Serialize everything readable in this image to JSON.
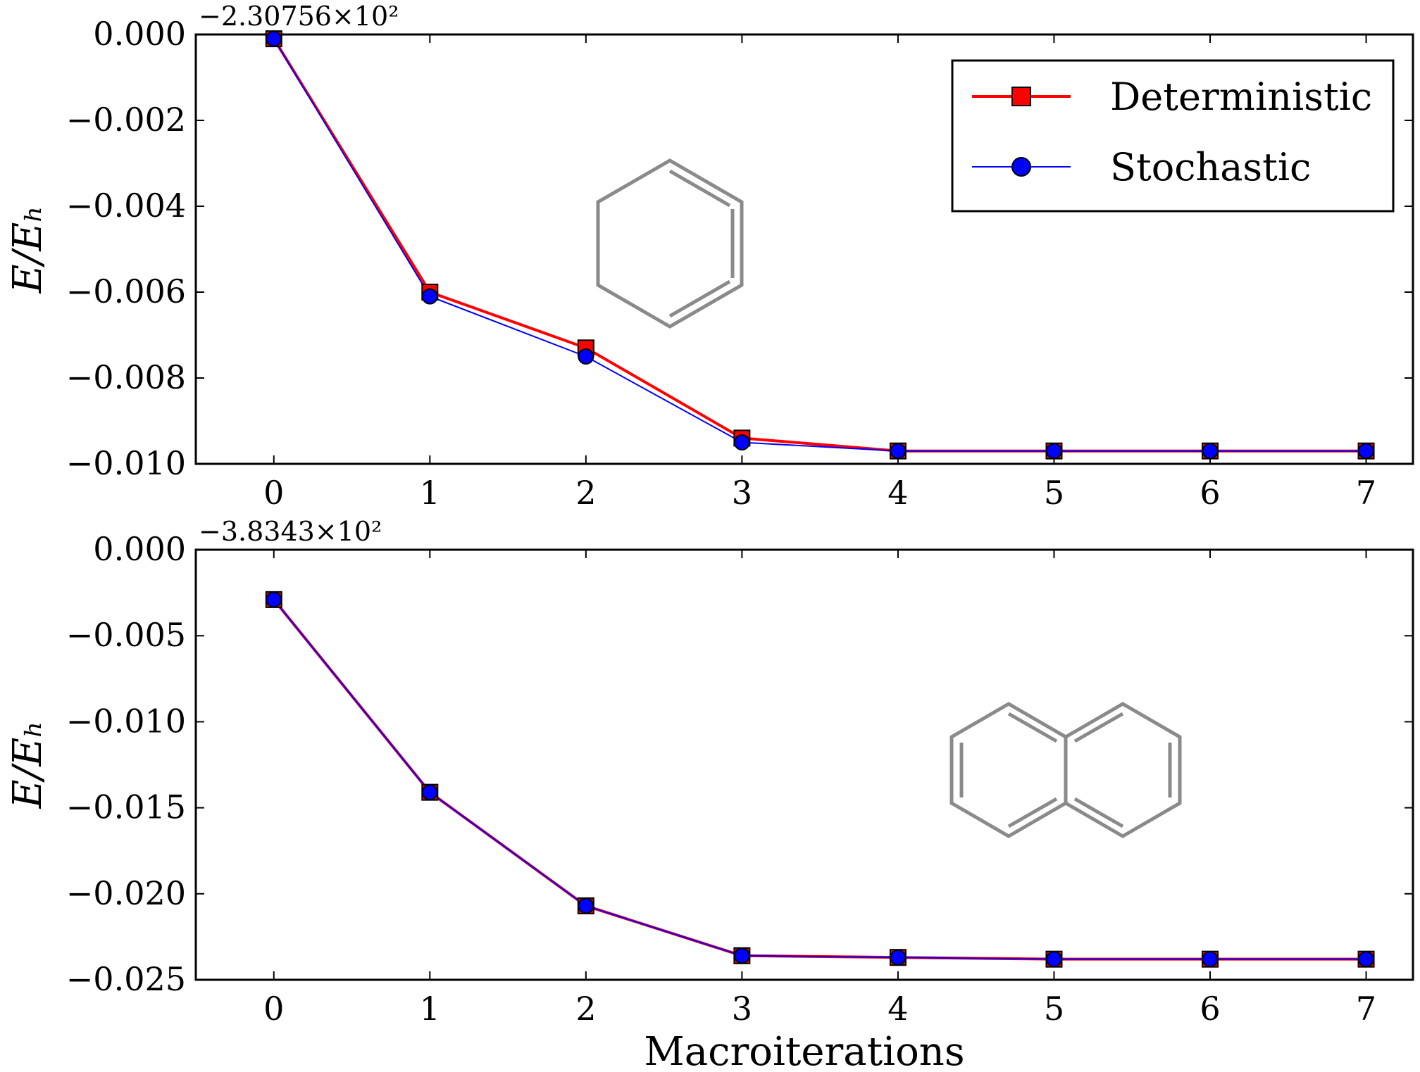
{
  "chart_data": [
    {
      "type": "line",
      "offset_label": "−2.30756×10²",
      "ylabel": "E/Eₕ",
      "xlabel": "",
      "x": [
        0,
        1,
        2,
        3,
        4,
        5,
        6,
        7
      ],
      "xlim": [
        -0.5,
        7.3
      ],
      "ylim": [
        -0.01,
        0.0
      ],
      "yticks": [
        "0.000",
        "−0.002",
        "−0.004",
        "−0.006",
        "−0.008",
        "−0.010"
      ],
      "ytick_values": [
        0.0,
        -0.002,
        -0.004,
        -0.006,
        -0.008,
        -0.01
      ],
      "xticks": [
        "0",
        "1",
        "2",
        "3",
        "4",
        "5",
        "6",
        "7"
      ],
      "series": [
        {
          "name": "Deterministic",
          "color": "#ff0000",
          "marker": "square",
          "values": [
            -0.0001,
            -0.006,
            -0.0073,
            -0.0094,
            -0.0097,
            -0.0097,
            -0.0097,
            -0.0097
          ]
        },
        {
          "name": "Stochastic",
          "color": "#0000ff",
          "marker": "circle",
          "values": [
            -0.0001,
            -0.0061,
            -0.0075,
            -0.0095,
            -0.0097,
            -0.0097,
            -0.0097,
            -0.0097
          ]
        }
      ],
      "legend": {
        "position": "top-right",
        "entries": [
          "Deterministic",
          "Stochastic"
        ]
      },
      "inset_image": "benzene-structure",
      "grid": false
    },
    {
      "type": "line",
      "offset_label": "−3.8343×10²",
      "ylabel": "E/Eₕ",
      "xlabel": "Macroiterations",
      "x": [
        0,
        1,
        2,
        3,
        4,
        5,
        6,
        7
      ],
      "xlim": [
        -0.5,
        7.3
      ],
      "ylim": [
        -0.025,
        0.0
      ],
      "yticks": [
        "0.000",
        "−0.005",
        "−0.010",
        "−0.015",
        "−0.020",
        "−0.025"
      ],
      "ytick_values": [
        0.0,
        -0.005,
        -0.01,
        -0.015,
        -0.02,
        -0.025
      ],
      "xticks": [
        "0",
        "1",
        "2",
        "3",
        "4",
        "5",
        "6",
        "7"
      ],
      "series": [
        {
          "name": "Deterministic",
          "color": "#ff0000",
          "marker": "square",
          "values": [
            -0.0029,
            -0.0141,
            -0.0207,
            -0.0236,
            -0.0237,
            -0.0238,
            -0.0238,
            -0.0238
          ]
        },
        {
          "name": "Stochastic",
          "color": "#0000ff",
          "marker": "circle",
          "values": [
            -0.0029,
            -0.0141,
            -0.0207,
            -0.0236,
            -0.0237,
            -0.0238,
            -0.0238,
            -0.0238
          ]
        }
      ],
      "inset_image": "naphthalene-structure",
      "grid": false
    }
  ]
}
